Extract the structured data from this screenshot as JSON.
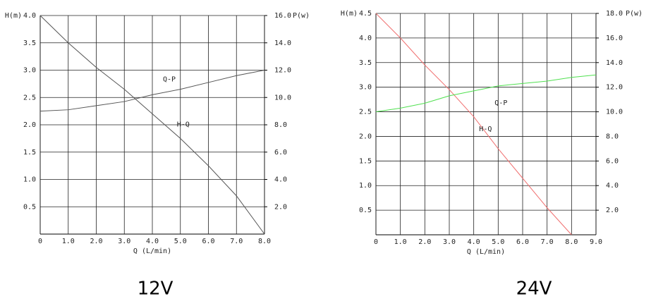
{
  "chart_data": [
    {
      "type": "line",
      "caption": "12V",
      "xlabel": "Q (L/min)",
      "ylabel": "H(m)",
      "y2label": "P(w)",
      "x": [
        0,
        1,
        2,
        3,
        4,
        5,
        6,
        7,
        8
      ],
      "series": [
        {
          "name": "H-Q",
          "color": "#555555",
          "values": [
            4.0,
            3.5,
            3.05,
            2.65,
            2.2,
            1.75,
            1.25,
            0.7,
            0
          ]
        },
        {
          "name": "Q-P",
          "color": "#555555",
          "axis": "y2",
          "values": [
            9.0,
            9.1,
            9.4,
            9.7,
            10.2,
            10.6,
            11.1,
            11.6,
            12.0
          ]
        }
      ],
      "xlim": [
        0,
        8
      ],
      "ylim": [
        0,
        4
      ],
      "y2lim": [
        0,
        16
      ],
      "xticks": [
        0,
        {
          "value": 1,
          "label": "1.0"
        },
        {
          "value": 2,
          "label": "2.0"
        },
        {
          "value": 3,
          "label": "3.0"
        },
        {
          "value": 4,
          "label": "4.0"
        },
        {
          "value": 5,
          "label": "5.0"
        },
        {
          "value": 6,
          "label": "6.0"
        },
        {
          "value": 7,
          "label": "7.0"
        },
        {
          "value": 8,
          "label": "8.0"
        }
      ],
      "yticks": [
        0.5,
        {
          "value": 1,
          "label": "1.0"
        },
        1.5,
        {
          "value": 2,
          "label": "2.0"
        },
        2.5,
        {
          "value": 3,
          "label": "3.0"
        },
        3.5,
        {
          "value": 4,
          "label": "4.0"
        }
      ],
      "y2ticks": [
        {
          "value": 2,
          "label": "2.0"
        },
        {
          "value": 4,
          "label": "4.0"
        },
        {
          "value": 6,
          "label": "6.0"
        },
        {
          "value": 8,
          "label": "8.0"
        },
        {
          "value": 10,
          "label": "10.0"
        },
        {
          "value": 12,
          "label": "12.0"
        },
        {
          "value": 14,
          "label": "14.0"
        },
        {
          "value": 16,
          "label": "16.0"
        }
      ],
      "grid": true
    },
    {
      "type": "line",
      "caption": "24V",
      "xlabel": "Q (L/min)",
      "ylabel": "H(m)",
      "y2label": "P(w)",
      "x": [
        0,
        1,
        2,
        3,
        4,
        5,
        6,
        7,
        8,
        9
      ],
      "series": [
        {
          "name": "H-Q",
          "color": "#f07070",
          "values": [
            4.5,
            4.0,
            3.45,
            2.95,
            2.4,
            1.75,
            1.15,
            0.55,
            0,
            null
          ]
        },
        {
          "name": "Q-P",
          "color": "#50e050",
          "axis": "y2",
          "values": [
            10.0,
            10.3,
            10.7,
            11.3,
            11.7,
            12.1,
            12.3,
            12.5,
            12.8,
            13.0
          ]
        }
      ],
      "xlim": [
        0,
        9
      ],
      "ylim": [
        0,
        4.5
      ],
      "y2lim": [
        0,
        18
      ],
      "xticks": [
        0,
        {
          "value": 1,
          "label": "1.0"
        },
        {
          "value": 2,
          "label": "2.0"
        },
        {
          "value": 3,
          "label": "3.0"
        },
        {
          "value": 4,
          "label": "4.0"
        },
        {
          "value": 5,
          "label": "5.0"
        },
        {
          "value": 6,
          "label": "6.0"
        },
        {
          "value": 7,
          "label": "7.0"
        },
        {
          "value": 8,
          "label": "8.0"
        },
        {
          "value": 9,
          "label": "9.0"
        }
      ],
      "yticks": [
        0.5,
        {
          "value": 1,
          "label": "1.0"
        },
        1.5,
        {
          "value": 2,
          "label": "2.0"
        },
        2.5,
        {
          "value": 3,
          "label": "3.0"
        },
        3.5,
        {
          "value": 4,
          "label": "4.0"
        },
        4.5
      ],
      "y2ticks": [
        {
          "value": 2,
          "label": "2.0"
        },
        {
          "value": 4,
          "label": "4.0"
        },
        {
          "value": 6,
          "label": "6.0"
        },
        {
          "value": 8,
          "label": "8.0"
        },
        {
          "value": 10,
          "label": "10.0"
        },
        {
          "value": 12,
          "label": "12.0"
        },
        {
          "value": 14,
          "label": "14.0"
        },
        {
          "value": 16,
          "label": "16.0"
        },
        {
          "value": 18,
          "label": "18.0"
        }
      ],
      "grid": true
    }
  ]
}
